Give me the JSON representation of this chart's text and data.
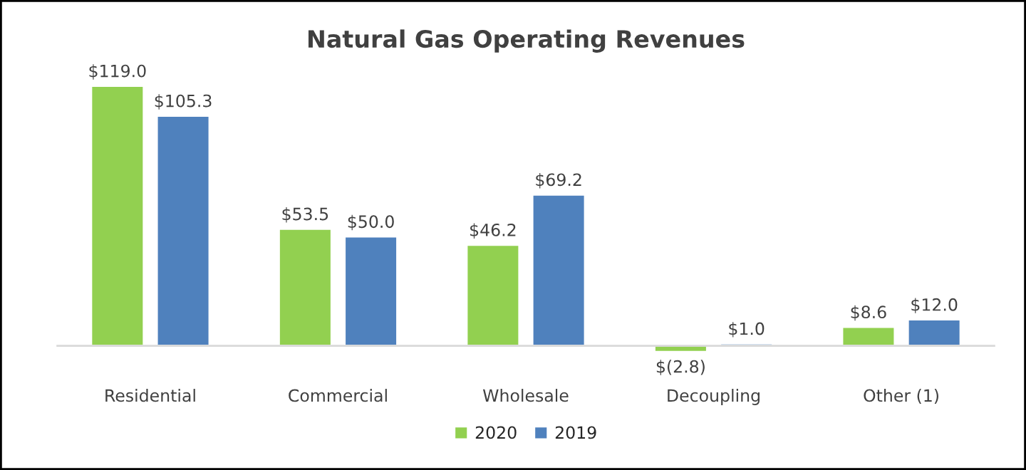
{
  "chart_data": {
    "type": "bar",
    "title": "Natural Gas Operating Revenues",
    "categories": [
      "Residential",
      "Commercial",
      "Wholesale",
      "Decoupling",
      "Other (1)"
    ],
    "series": [
      {
        "name": "2020",
        "color": "#92d050",
        "values": [
          119.0,
          53.5,
          46.2,
          -2.8,
          8.6
        ],
        "value_labels": [
          "$119.0",
          "$53.5",
          "$46.2",
          "$(2.8)",
          "$8.6"
        ]
      },
      {
        "name": "2019",
        "color": "#4f81bd",
        "values": [
          105.3,
          50.0,
          69.2,
          1.0,
          12.0
        ],
        "value_labels": [
          "$105.3",
          "$50.0",
          "$69.2",
          "$1.0",
          "$12.0"
        ]
      }
    ],
    "legend": "bottom",
    "grid": false,
    "tick_labels": "x"
  }
}
